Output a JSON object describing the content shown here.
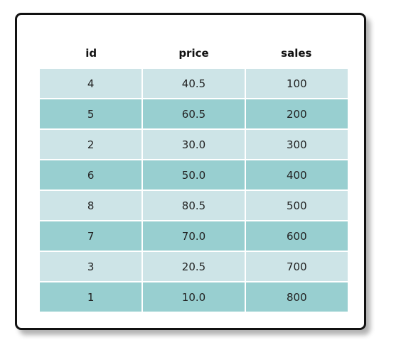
{
  "table": {
    "columns": [
      "id",
      "price",
      "sales"
    ],
    "rows": [
      [
        "4",
        "40.5",
        "100"
      ],
      [
        "5",
        "60.5",
        "200"
      ],
      [
        "2",
        "30.0",
        "300"
      ],
      [
        "6",
        "50.0",
        "400"
      ],
      [
        "8",
        "80.5",
        "500"
      ],
      [
        "7",
        "70.0",
        "600"
      ],
      [
        "3",
        "20.5",
        "700"
      ],
      [
        "1",
        "10.0",
        "800"
      ]
    ]
  },
  "colors": {
    "row_light": "#cde4e7",
    "row_dark": "#98cfd0",
    "border": "#111111"
  }
}
